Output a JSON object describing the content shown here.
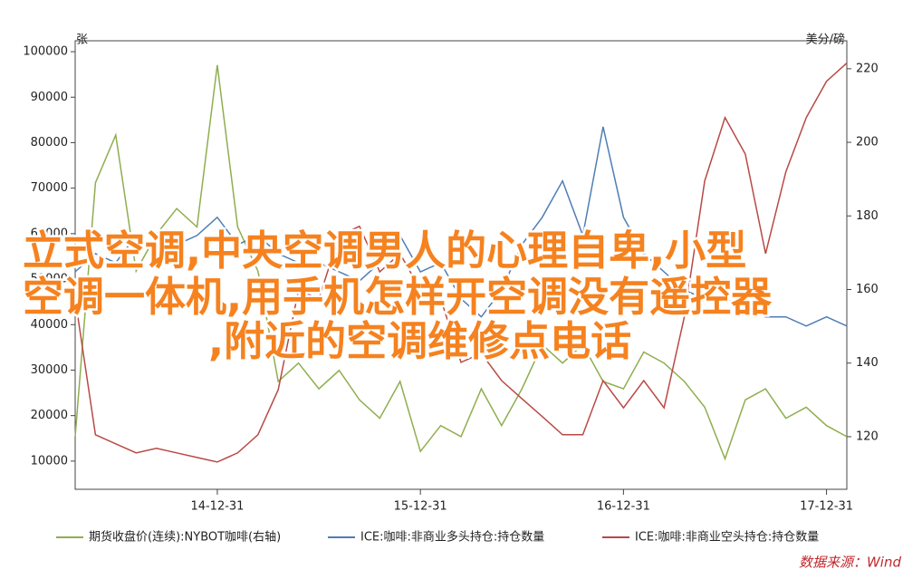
{
  "chart_data": {
    "type": "line",
    "x": [
      2014.3,
      2014.4,
      2014.5,
      2014.6,
      2014.7,
      2014.8,
      2014.9,
      2015.0,
      2015.1,
      2015.2,
      2015.3,
      2015.4,
      2015.5,
      2015.6,
      2015.7,
      2015.8,
      2015.9,
      2016.0,
      2016.1,
      2016.2,
      2016.3,
      2016.4,
      2016.5,
      2016.6,
      2016.7,
      2016.8,
      2016.9,
      2017.0,
      2017.1,
      2017.2,
      2017.3,
      2017.4,
      2017.5,
      2017.6,
      2017.7,
      2017.8,
      2017.9,
      2018.0,
      2018.1
    ],
    "series": [
      {
        "name": "期货收盘价(连续):NYBOT咖啡(右轴)",
        "color": "#8fae4f",
        "axis": "y2",
        "values": [
          120,
          189,
          202,
          165,
          175,
          182,
          177,
          221,
          177,
          165,
          135,
          140,
          133,
          138,
          130,
          125,
          135,
          116,
          123,
          120,
          133,
          123,
          133,
          145,
          140,
          145,
          135,
          133,
          143,
          140,
          135,
          128,
          114,
          130,
          133,
          125,
          128,
          123,
          120
        ]
      },
      {
        "name": "ICE:咖啡:非商业多头持仓:持仓数量",
        "color": "#4f7eb5",
        "values": [
          51600,
          55600,
          53600,
          59600,
          55600,
          57600,
          59600,
          63600,
          57600,
          59600,
          55600,
          53600,
          53600,
          51600,
          49600,
          53600,
          59600,
          51600,
          53600,
          45700,
          41700,
          47600,
          57600,
          63600,
          71600,
          59600,
          83500,
          63600,
          55600,
          51600,
          47600,
          45700,
          45700,
          43700,
          41700,
          41700,
          39700,
          41700,
          39700
        ]
      },
      {
        "name": "ICE:咖啡:非商业空头持仓:持仓数量",
        "color": "#b84a45",
        "values": [
          45700,
          15800,
          13800,
          11800,
          12800,
          11800,
          10800,
          9800,
          11800,
          15800,
          25700,
          47600,
          45700,
          59600,
          61600,
          51600,
          55600,
          47600,
          45700,
          31700,
          33700,
          27700,
          23700,
          19800,
          15800,
          15800,
          27700,
          21700,
          27700,
          21700,
          41700,
          71600,
          85500,
          77500,
          55600,
          73600,
          85500,
          93500,
          97500
        ]
      }
    ],
    "xlim": [
      2014.3,
      2018.1
    ],
    "xticks": [
      {
        "value": 2015.0,
        "label": "14-12-31"
      },
      {
        "value": 2016.0,
        "label": "15-12-31"
      },
      {
        "value": 2017.0,
        "label": "16-12-31"
      },
      {
        "value": 2018.0,
        "label": "17-12-31"
      }
    ],
    "ylim": [
      3800,
      102400
    ],
    "yticks": [
      10000,
      20000,
      30000,
      40000,
      50000,
      60000,
      70000,
      80000,
      90000,
      100000
    ],
    "y2lim": [
      105.7,
      227.6
    ],
    "y2ticks": [
      120,
      140,
      160,
      180,
      200,
      220
    ],
    "y_unit": "张",
    "y2_unit": "美分/磅",
    "source": "数据来源：Wind"
  },
  "overlay": {
    "lines": [
      "立式空调,中央空调男人的心理自卑,小型",
      "空调一体机,用手机怎样开空调没有遥控器",
      ",附近的空调维修点电话"
    ]
  }
}
